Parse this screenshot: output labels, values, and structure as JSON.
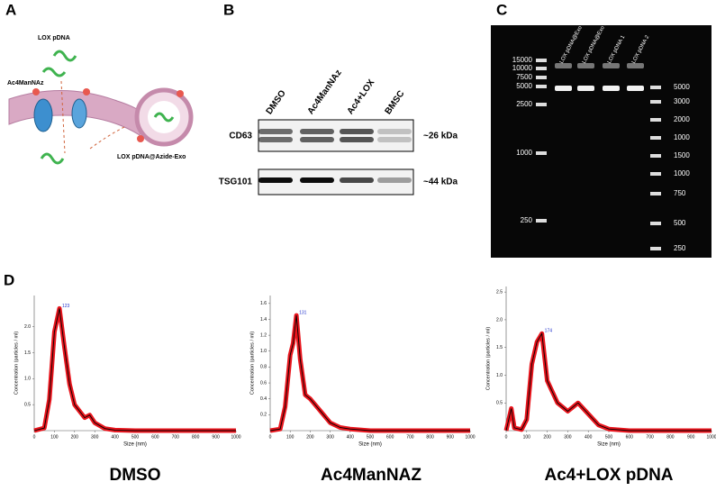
{
  "panel_a": {
    "label": "A",
    "cargo": "LOX pDNA",
    "reagent": "Ac4ManNAz",
    "product": "LOX pDNA@Azide-Exo"
  },
  "panel_b": {
    "label": "B",
    "lanes": [
      "DMSO",
      "Ac4ManNAz",
      "Ac4+LOX",
      "BMSC"
    ],
    "rows": [
      {
        "name": "CD63",
        "size": "~26 kDa"
      },
      {
        "name": "TSG101",
        "size": "~44 kDa"
      }
    ]
  },
  "panel_c": {
    "label": "C",
    "lanes": [
      "LOX pDNA@Exo 1",
      "LOX pDNA@Exo 2",
      "LOX pDNA 1",
      "LOX pDNA 2"
    ],
    "ladder_left": [
      15000,
      10000,
      7500,
      5000,
      2500,
      1000,
      250
    ],
    "ladder_right": [
      5000,
      3000,
      2000,
      1000,
      1500,
      1000,
      750,
      500,
      250
    ]
  },
  "panel_d": {
    "label": "D",
    "captions": [
      "DMSO",
      "Ac4ManNAZ",
      "Ac4+LOX pDNA"
    ]
  },
  "chart_data": [
    {
      "type": "line",
      "xlabel": "Size (nm)",
      "ylabel": "Concentration (particles / ml)",
      "peak_label": 123,
      "x": [
        0,
        50,
        75,
        100,
        125,
        150,
        175,
        200,
        250,
        275,
        300,
        350,
        400,
        500,
        600,
        700,
        800,
        900,
        1000
      ],
      "series": [
        {
          "color": "#e8141c",
          "values": [
            0,
            0.05,
            0.6,
            1.9,
            2.35,
            1.6,
            0.9,
            0.5,
            0.25,
            0.3,
            0.15,
            0.04,
            0.01,
            0,
            0,
            0,
            0,
            0,
            0
          ]
        }
      ],
      "xlim": [
        0,
        1000
      ],
      "xticks": [
        0,
        100,
        200,
        300,
        400,
        500,
        600,
        700,
        800,
        900,
        1000
      ],
      "ylim": [
        0,
        2.6
      ],
      "yticks": [
        0.5,
        {
          "value": 1,
          "label": "1.0"
        },
        1.5,
        {
          "value": 2,
          "label": "2.0"
        }
      ]
    },
    {
      "type": "line",
      "xlabel": "Size (nm)",
      "ylabel": "Concentration (particles / ml)",
      "peak_label": 131,
      "x": [
        0,
        50,
        75,
        100,
        115,
        131,
        150,
        175,
        200,
        250,
        300,
        350,
        400,
        500,
        600,
        700,
        800,
        900,
        1000
      ],
      "series": [
        {
          "color": "#e8141c",
          "values": [
            0,
            0.02,
            0.3,
            0.95,
            1.1,
            1.45,
            0.9,
            0.45,
            0.4,
            0.25,
            0.1,
            0.04,
            0.02,
            0,
            0,
            0,
            0,
            0,
            0
          ]
        }
      ],
      "xlim": [
        0,
        1000
      ],
      "xticks": [
        0,
        100,
        200,
        300,
        400,
        500,
        600,
        700,
        800,
        900,
        1000
      ],
      "ylim": [
        0,
        1.7
      ],
      "yticks": [
        0.2,
        0.4,
        0.6,
        0.8,
        {
          "value": 1,
          "label": "1.0"
        },
        1.2,
        1.4,
        1.6
      ]
    },
    {
      "type": "line",
      "xlabel": "Size (nm)",
      "ylabel": "Concentration (particles / ml)",
      "peak_label": 174,
      "x": [
        0,
        25,
        40,
        75,
        100,
        125,
        150,
        174,
        200,
        250,
        300,
        350,
        400,
        450,
        500,
        600,
        700,
        800,
        900,
        1000
      ],
      "series": [
        {
          "color": "#e8141c",
          "values": [
            0,
            0.4,
            0.05,
            0.02,
            0.2,
            1.2,
            1.6,
            1.75,
            0.9,
            0.5,
            0.35,
            0.5,
            0.3,
            0.1,
            0.03,
            0,
            0,
            0,
            0,
            0
          ]
        }
      ],
      "xlim": [
        0,
        1000
      ],
      "xticks": [
        0,
        100,
        200,
        300,
        400,
        500,
        600,
        700,
        800,
        900,
        1000
      ],
      "ylim": [
        0,
        2.6
      ],
      "yticks": [
        0.5,
        {
          "value": 1,
          "label": "1.0"
        },
        1.5,
        {
          "value": 2,
          "label": "2.0"
        },
        2.5
      ]
    }
  ]
}
